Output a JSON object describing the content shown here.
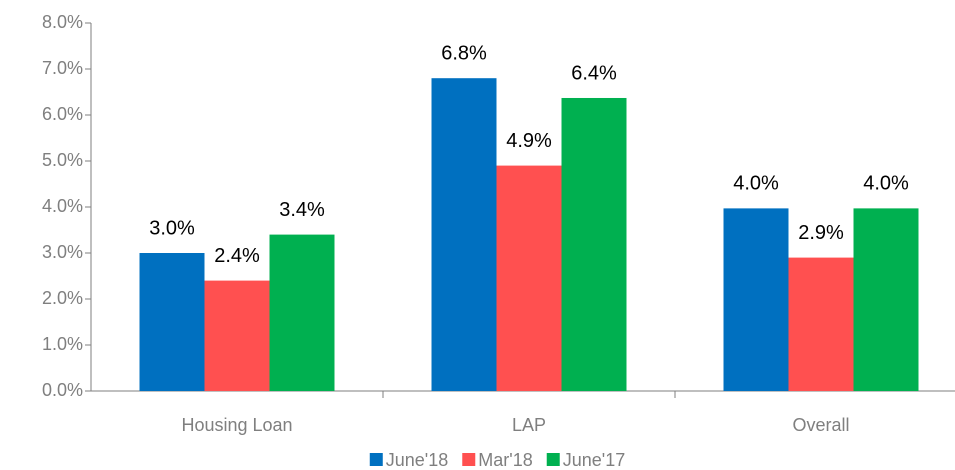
{
  "chart_data": {
    "type": "bar",
    "categories": [
      "Housing Loan",
      "LAP",
      "Overall"
    ],
    "series": [
      {
        "name": "June'18",
        "color": "#0070c0",
        "values": [
          3.0,
          6.8,
          3.97
        ],
        "value_labels": [
          "3.0%",
          "6.8%",
          "4.0%"
        ]
      },
      {
        "name": "Mar'18",
        "color": "#ff5050",
        "values": [
          2.4,
          4.9,
          2.9
        ],
        "value_labels": [
          "2.4%",
          "4.9%",
          "2.9%"
        ]
      },
      {
        "name": "June'17",
        "color": "#00b050",
        "values": [
          3.4,
          6.37,
          3.97
        ],
        "value_labels": [
          "3.4%",
          "6.4%",
          "4.0%"
        ]
      }
    ],
    "ylim": [
      0,
      8
    ],
    "yticks": [
      {
        "value": 0,
        "label": "0.0%"
      },
      {
        "value": 1,
        "label": "1.0%"
      },
      {
        "value": 2,
        "label": "2.0%"
      },
      {
        "value": 3,
        "label": "3.0%"
      },
      {
        "value": 4,
        "label": "4.0%"
      },
      {
        "value": 5,
        "label": "5.0%"
      },
      {
        "value": 6,
        "label": "6.0%"
      },
      {
        "value": 7,
        "label": "7.0%"
      },
      {
        "value": 8,
        "label": "8.0%"
      }
    ],
    "grid": false,
    "legend": "bottom"
  }
}
